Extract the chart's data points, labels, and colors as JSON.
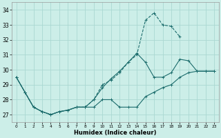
{
  "xlabel": "Humidex (Indice chaleur)",
  "bg_color": "#cceee8",
  "grid_color": "#aad8d2",
  "line_color": "#1a6b6b",
  "xlim": [
    -0.5,
    23.5
  ],
  "ylim": [
    26.5,
    34.5
  ],
  "yticks": [
    27,
    28,
    29,
    30,
    31,
    32,
    33,
    34
  ],
  "xticks": [
    0,
    1,
    2,
    3,
    4,
    5,
    6,
    7,
    8,
    9,
    10,
    11,
    12,
    13,
    14,
    15,
    16,
    17,
    18,
    19,
    20,
    21,
    22,
    23
  ],
  "series": [
    {
      "x": [
        0,
        1,
        2,
        3,
        4,
        5,
        6,
        7,
        8,
        9,
        10,
        11,
        12,
        13,
        14,
        15,
        16,
        17,
        18,
        19,
        20,
        21,
        22,
        23
      ],
      "y": [
        29.5,
        28.5,
        27.5,
        27.2,
        27.0,
        27.2,
        27.3,
        27.5,
        27.5,
        27.5,
        28.0,
        28.0,
        27.5,
        27.5,
        27.5,
        28.2,
        28.5,
        28.8,
        29.0,
        29.5,
        29.8,
        29.9,
        29.9,
        29.9
      ],
      "linestyle": "-",
      "linewidth": 0.8
    },
    {
      "x": [
        0,
        1,
        2,
        3,
        4,
        5,
        6,
        7,
        8,
        9,
        10,
        11,
        12,
        13,
        14,
        15,
        16,
        17,
        18,
        19,
        20,
        21,
        22,
        23
      ],
      "y": [
        29.5,
        28.5,
        27.5,
        27.2,
        27.0,
        27.2,
        27.3,
        27.5,
        27.5,
        28.0,
        28.8,
        29.4,
        29.9,
        30.5,
        31.1,
        30.5,
        29.5,
        29.5,
        29.8,
        30.7,
        30.6,
        29.9,
        29.9,
        29.9
      ],
      "linestyle": "-",
      "linewidth": 0.8
    },
    {
      "x": [
        0,
        1,
        2,
        3,
        4,
        5,
        6,
        7,
        8,
        9,
        10,
        11,
        12,
        13,
        14,
        15,
        16,
        17,
        18,
        19
      ],
      "y": [
        29.5,
        28.5,
        27.5,
        27.2,
        27.0,
        27.2,
        27.3,
        27.5,
        27.5,
        28.0,
        29.0,
        29.3,
        29.8,
        30.5,
        31.0,
        33.3,
        33.8,
        33.0,
        32.9,
        32.2
      ],
      "linestyle": "--",
      "linewidth": 0.8
    }
  ]
}
